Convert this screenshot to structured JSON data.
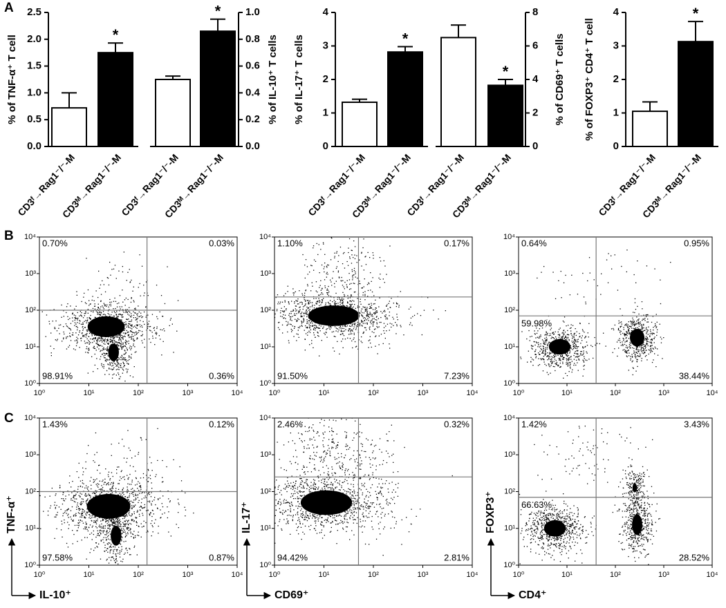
{
  "panel_labels": [
    "A",
    "B",
    "C"
  ],
  "chart_data": [
    {
      "type": "bar",
      "axis_side": "left",
      "ylabel": "% of TNF-α⁺ T cell",
      "categories": [
        "CD3ᶠ→Rag1⁻/⁻-M",
        "CD3ᴹ→Rag1⁻/⁻-M"
      ],
      "values": [
        0.72,
        1.75
      ],
      "errors": [
        0.28,
        0.18
      ],
      "colors": [
        "#ffffff",
        "#000000"
      ],
      "significant": [
        false,
        true
      ],
      "significance_marker": "*",
      "ylim": [
        0,
        2.5
      ],
      "yticks": [
        {
          "value": 0,
          "label": "0.0"
        },
        0.5,
        {
          "value": 1,
          "label": "1.0"
        },
        1.5,
        {
          "value": 2,
          "label": "2.0"
        },
        2.5
      ]
    },
    {
      "type": "bar",
      "axis_side": "right",
      "ylabel": "% of IL-10⁺ T cells",
      "categories": [
        "CD3ᶠ→Rag1⁻/⁻-M",
        "CD3ᴹ→Rag1⁻/⁻-M"
      ],
      "values": [
        0.5,
        0.86
      ],
      "errors": [
        0.025,
        0.09
      ],
      "colors": [
        "#ffffff",
        "#000000"
      ],
      "significant": [
        false,
        true
      ],
      "significance_marker": "*",
      "ylim": [
        0,
        1
      ],
      "yticks": [
        {
          "value": 0,
          "label": "0.0"
        },
        0.2,
        0.4,
        0.6,
        0.8,
        {
          "value": 1,
          "label": "1.0"
        }
      ]
    },
    {
      "type": "bar",
      "axis_side": "left",
      "ylabel": "% of IL-17⁺ T cells",
      "categories": [
        "CD3ᶠ→Rag1⁻/⁻-M",
        "CD3ᴹ→Rag1⁻/⁻-M"
      ],
      "values": [
        1.32,
        2.82
      ],
      "errors": [
        0.09,
        0.16
      ],
      "colors": [
        "#ffffff",
        "#000000"
      ],
      "significant": [
        false,
        true
      ],
      "significance_marker": "*",
      "ylim": [
        0,
        4
      ],
      "yticks": [
        0,
        1,
        2,
        3,
        4
      ]
    },
    {
      "type": "bar",
      "axis_side": "right",
      "ylabel": "% of CD69⁺ T cells",
      "categories": [
        "CD3ᶠ→Rag1⁻/⁻-M",
        "CD3ᴹ→Rag1⁻/⁻-M"
      ],
      "values": [
        6.5,
        3.65
      ],
      "errors": [
        0.75,
        0.35
      ],
      "colors": [
        "#ffffff",
        "#000000"
      ],
      "significant": [
        false,
        true
      ],
      "significance_marker": "*",
      "ylim": [
        0,
        8
      ],
      "yticks": [
        0,
        2,
        4,
        6,
        8
      ]
    },
    {
      "type": "bar",
      "axis_side": "left",
      "ylabel": "% of FOXP3⁺ CD4⁺ T cell",
      "categories": [
        "CD3ᶠ→Rag1⁻/⁻-M",
        "CD3ᴹ→Rag1⁻/⁻-M"
      ],
      "values": [
        1.05,
        3.13
      ],
      "errors": [
        0.28,
        0.6
      ],
      "colors": [
        "#ffffff",
        "#000000"
      ],
      "significant": [
        false,
        true
      ],
      "significance_marker": "*",
      "ylim": [
        0,
        4
      ],
      "yticks": [
        0,
        1,
        2,
        3,
        4
      ]
    },
    {
      "type": "scatter",
      "xscale": "log",
      "yscale": "log",
      "xlim": [
        1,
        10000
      ],
      "ylim": [
        1,
        10000
      ],
      "xticks": [
        {
          "value": 1,
          "label": "10⁰"
        },
        {
          "value": 10,
          "label": "10¹"
        },
        {
          "value": 100,
          "label": "10²"
        },
        {
          "value": 1000,
          "label": "10³"
        },
        {
          "value": 10000,
          "label": "10⁴"
        }
      ],
      "yticks": [
        {
          "value": 1,
          "label": "10⁰"
        },
        {
          "value": 10,
          "label": "10¹"
        },
        {
          "value": 100,
          "label": "10²"
        },
        {
          "value": 1000,
          "label": "10³"
        },
        {
          "value": 10000,
          "label": "10⁴"
        }
      ],
      "xgate": 150,
      "ygate": 100,
      "values": [
        0.7,
        0.03,
        98.91,
        0.36
      ],
      "value_labels": [
        "0.70%",
        "0.03%",
        "98.91%",
        "0.36%"
      ]
    },
    {
      "type": "scatter",
      "xscale": "log",
      "yscale": "log",
      "xlim": [
        1,
        10000
      ],
      "ylim": [
        1,
        10000
      ],
      "xticks": [
        {
          "value": 1,
          "label": "10⁰"
        },
        {
          "value": 10,
          "label": "10¹"
        },
        {
          "value": 100,
          "label": "10²"
        },
        {
          "value": 1000,
          "label": "10³"
        },
        {
          "value": 10000,
          "label": "10⁴"
        }
      ],
      "yticks": [
        {
          "value": 1,
          "label": "10⁰"
        },
        {
          "value": 10,
          "label": "10¹"
        },
        {
          "value": 100,
          "label": "10²"
        },
        {
          "value": 1000,
          "label": "10³"
        },
        {
          "value": 10000,
          "label": "10⁴"
        }
      ],
      "xgate": 50,
      "ygate": 230,
      "values": [
        1.1,
        0.17,
        91.5,
        7.23
      ],
      "value_labels": [
        "1.10%",
        "0.17%",
        "91.50%",
        "7.23%"
      ]
    },
    {
      "type": "scatter",
      "xscale": "log",
      "yscale": "log",
      "xlim": [
        1,
        10000
      ],
      "ylim": [
        1,
        10000
      ],
      "xticks": [
        {
          "value": 1,
          "label": "10⁰"
        },
        {
          "value": 10,
          "label": "10¹"
        },
        {
          "value": 100,
          "label": "10²"
        },
        {
          "value": 1000,
          "label": "10³"
        },
        {
          "value": 10000,
          "label": "10⁴"
        }
      ],
      "yticks": [
        {
          "value": 1,
          "label": "10⁰"
        },
        {
          "value": 10,
          "label": "10¹"
        },
        {
          "value": 100,
          "label": "10²"
        },
        {
          "value": 1000,
          "label": "10³"
        },
        {
          "value": 10000,
          "label": "10⁴"
        }
      ],
      "xgate": 40,
      "ygate": 70,
      "values": [
        0.64,
        0.95,
        59.98,
        38.44
      ],
      "value_labels": [
        "0.64%",
        "0.95%",
        "59.98%",
        "38.44%"
      ]
    },
    {
      "type": "scatter",
      "xscale": "log",
      "yscale": "log",
      "xlim": [
        1,
        10000
      ],
      "ylim": [
        1,
        10000
      ],
      "xlabel": "IL-10⁺",
      "ylabel": "TNF-α⁺",
      "xticks": [
        {
          "value": 1,
          "label": "10⁰"
        },
        {
          "value": 10,
          "label": "10¹"
        },
        {
          "value": 100,
          "label": "10²"
        },
        {
          "value": 1000,
          "label": "10³"
        },
        {
          "value": 10000,
          "label": "10⁴"
        }
      ],
      "yticks": [
        {
          "value": 1,
          "label": "10⁰"
        },
        {
          "value": 10,
          "label": "10¹"
        },
        {
          "value": 100,
          "label": "10²"
        },
        {
          "value": 1000,
          "label": "10³"
        },
        {
          "value": 10000,
          "label": "10⁴"
        }
      ],
      "xgate": 150,
      "ygate": 100,
      "values": [
        1.43,
        0.12,
        97.58,
        0.87
      ],
      "value_labels": [
        "1.43%",
        "0.12%",
        "97.58%",
        "0.87%"
      ]
    },
    {
      "type": "scatter",
      "xscale": "log",
      "yscale": "log",
      "xlim": [
        1,
        10000
      ],
      "ylim": [
        1,
        10000
      ],
      "xlabel": "CD69⁺",
      "ylabel": "IL-17⁺",
      "xticks": [
        {
          "value": 1,
          "label": "10⁰"
        },
        {
          "value": 10,
          "label": "10¹"
        },
        {
          "value": 100,
          "label": "10²"
        },
        {
          "value": 1000,
          "label": "10³"
        },
        {
          "value": 10000,
          "label": "10⁴"
        }
      ],
      "yticks": [
        {
          "value": 1,
          "label": "10⁰"
        },
        {
          "value": 10,
          "label": "10¹"
        },
        {
          "value": 100,
          "label": "10²"
        },
        {
          "value": 1000,
          "label": "10³"
        },
        {
          "value": 10000,
          "label": "10⁴"
        }
      ],
      "xgate": 50,
      "ygate": 250,
      "values": [
        2.46,
        0.32,
        94.42,
        2.81
      ],
      "value_labels": [
        "2.46%",
        "0.32%",
        "94.42%",
        "2.81%"
      ]
    },
    {
      "type": "scatter",
      "xscale": "log",
      "yscale": "log",
      "xlim": [
        1,
        10000
      ],
      "ylim": [
        1,
        10000
      ],
      "xlabel": "CD4⁺",
      "ylabel": "FOXP3⁺",
      "xticks": [
        {
          "value": 1,
          "label": "10⁰"
        },
        {
          "value": 10,
          "label": "10¹"
        },
        {
          "value": 100,
          "label": "10²"
        },
        {
          "value": 1000,
          "label": "10³"
        },
        {
          "value": 10000,
          "label": "10⁴"
        }
      ],
      "yticks": [
        {
          "value": 1,
          "label": "10⁰"
        },
        {
          "value": 10,
          "label": "10¹"
        },
        {
          "value": 100,
          "label": "10²"
        },
        {
          "value": 1000,
          "label": "10³"
        },
        {
          "value": 10000,
          "label": "10⁴"
        }
      ],
      "xgate": 40,
      "ygate": 70,
      "values": [
        1.42,
        3.43,
        66.63,
        28.52
      ],
      "value_labels": [
        "1.42%",
        "3.43%",
        "66.63%",
        "28.52%"
      ]
    }
  ]
}
